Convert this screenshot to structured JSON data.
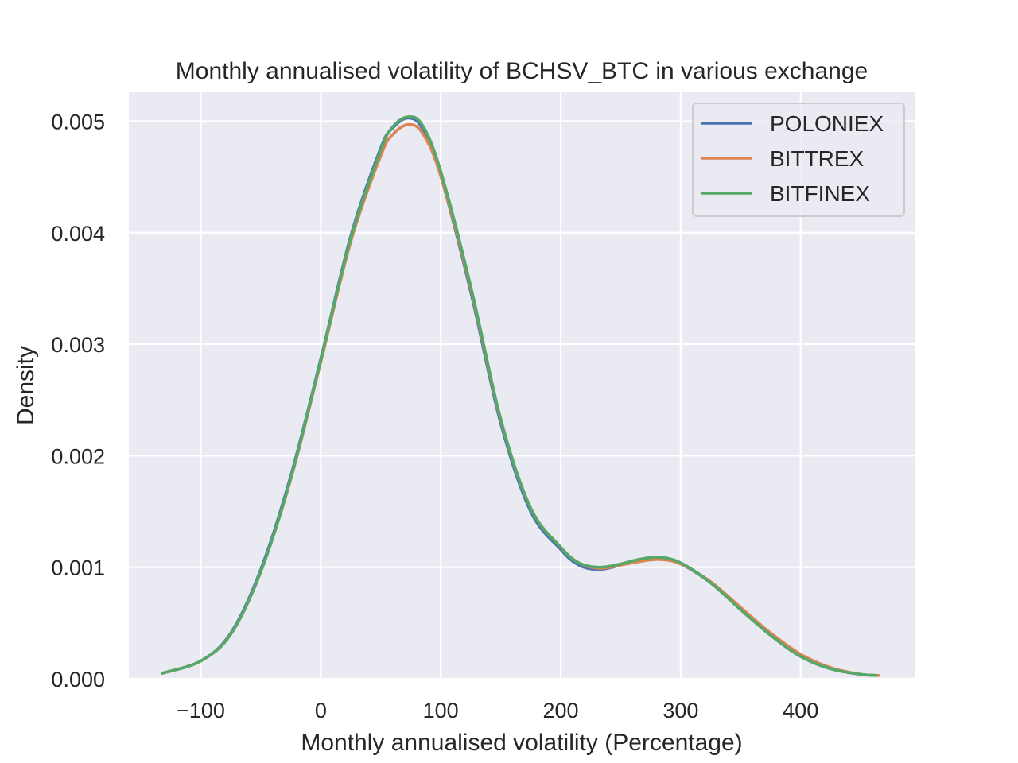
{
  "chart_data": {
    "type": "line",
    "title": "Monthly annualised volatility of BCHSV_BTC in various exchange",
    "xlabel": "Monthly annualised volatility (Percentage)",
    "ylabel": "Density",
    "xlim": [
      -160,
      495
    ],
    "ylim": [
      0,
      0.00526
    ],
    "x_ticks": [
      -100,
      0,
      100,
      200,
      300,
      400
    ],
    "x_tick_labels": [
      "−100",
      "0",
      "100",
      "200",
      "300",
      "400"
    ],
    "y_ticks": [
      0,
      0.001,
      0.002,
      0.003,
      0.004,
      0.005
    ],
    "y_tick_labels": [
      "0.000",
      "0.001",
      "0.002",
      "0.003",
      "0.004",
      "0.005"
    ],
    "grid": true,
    "legend_position": "top-right",
    "series": [
      {
        "name": "POLONIEX",
        "color": "#4c72b0",
        "x": [
          -132,
          -100,
          -75,
          -50,
          -25,
          0,
          25,
          50,
          60,
          73,
          85,
          100,
          125,
          150,
          175,
          200,
          215,
          232,
          250,
          265,
          282,
          300,
          325,
          350,
          375,
          400,
          425,
          450,
          463
        ],
        "y": [
          5e-05,
          0.00016,
          0.00041,
          0.00098,
          0.00182,
          0.00287,
          0.00397,
          0.00476,
          0.00494,
          0.00503,
          0.00493,
          0.00451,
          0.00347,
          0.00229,
          0.0015,
          0.00116,
          0.00102,
          0.00098,
          0.00102,
          0.00106,
          0.00108,
          0.00103,
          0.00086,
          0.00062,
          0.00039,
          0.0002,
          9e-05,
          4e-05,
          3e-05
        ]
      },
      {
        "name": "BITTREX",
        "color": "#dd8452",
        "x": [
          -132,
          -100,
          -75,
          -50,
          -25,
          0,
          25,
          50,
          60,
          73,
          85,
          100,
          125,
          150,
          175,
          200,
          215,
          232,
          250,
          265,
          282,
          300,
          325,
          350,
          375,
          400,
          425,
          450,
          465
        ],
        "y": [
          5e-05,
          0.00016,
          0.0004,
          0.00096,
          0.00179,
          0.00284,
          0.00392,
          0.00469,
          0.00488,
          0.00497,
          0.00489,
          0.00451,
          0.0035,
          0.00232,
          0.00153,
          0.00118,
          0.00104,
          0.00099,
          0.00102,
          0.00105,
          0.00107,
          0.00103,
          0.00087,
          0.00064,
          0.00041,
          0.00022,
          0.0001,
          4e-05,
          3e-05
        ]
      },
      {
        "name": "BITFINEX",
        "color": "#55a868",
        "x": [
          -132,
          -100,
          -75,
          -50,
          -25,
          0,
          25,
          50,
          60,
          73,
          85,
          100,
          125,
          150,
          175,
          200,
          215,
          232,
          250,
          265,
          282,
          300,
          325,
          350,
          375,
          400,
          425,
          450,
          463
        ],
        "y": [
          5e-05,
          0.00016,
          0.0004,
          0.00096,
          0.0018,
          0.00286,
          0.00395,
          0.00474,
          0.00495,
          0.00504,
          0.00496,
          0.00455,
          0.00352,
          0.00233,
          0.00153,
          0.00118,
          0.00104,
          0.001,
          0.00103,
          0.00107,
          0.00109,
          0.00104,
          0.00086,
          0.00062,
          0.00039,
          0.0002,
          9e-05,
          4e-05,
          3e-05
        ]
      }
    ]
  }
}
